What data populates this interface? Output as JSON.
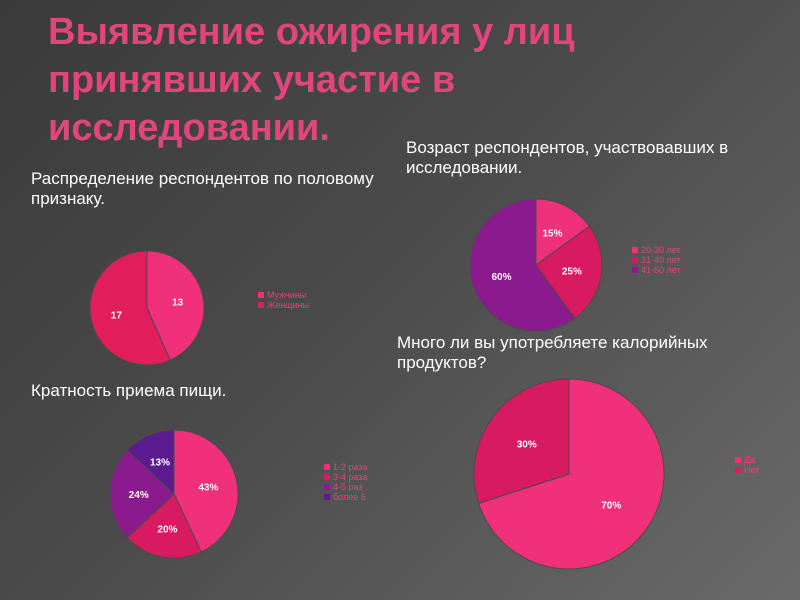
{
  "slide": {
    "title": "Выявление ожирения у лиц принявших участие в исследовании."
  },
  "chart_data": [
    {
      "type": "pie",
      "title": "Распределение респондентов по половому признаку.",
      "categories": [
        "Мужчины",
        "Женщины"
      ],
      "values": [
        13,
        17
      ],
      "labels": [
        "13",
        "17"
      ],
      "colors": [
        "#f0307a",
        "#e21d5c"
      ]
    },
    {
      "type": "pie",
      "title": "Возраст респондентов, участвовавших в исследовании.",
      "categories": [
        "20-30 лет",
        "31-40 лет",
        "41-60 лет"
      ],
      "values": [
        15,
        25,
        60
      ],
      "labels": [
        "15%",
        "25%",
        "60%"
      ],
      "colors": [
        "#f0307a",
        "#d81b60",
        "#8b1a8e"
      ]
    },
    {
      "type": "pie",
      "title": "Кратность приема пищи.",
      "categories": [
        "1-2 раза",
        "3-4 раза",
        "4-5 раз",
        "более 6"
      ],
      "values": [
        43,
        20,
        24,
        13
      ],
      "labels": [
        "43%",
        "20%",
        "24%",
        "13%"
      ],
      "colors": [
        "#f0307a",
        "#d81b60",
        "#8b1a8e",
        "#5b1a8e"
      ]
    },
    {
      "type": "pie",
      "title": "Много ли вы употребляете калорийных продуктов?",
      "categories": [
        "Да",
        "Нет"
      ],
      "values": [
        70,
        30
      ],
      "labels": [
        "70%",
        "30%"
      ],
      "colors": [
        "#f0307a",
        "#d81b60"
      ]
    }
  ]
}
